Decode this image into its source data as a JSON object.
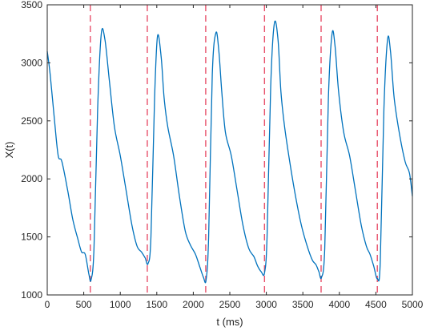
{
  "chart_data": {
    "type": "line",
    "xlabel": "t (ms)",
    "ylabel": "X(t)",
    "xlim": [
      0,
      5000
    ],
    "ylim": [
      1000,
      3500
    ],
    "xticks": [
      0,
      500,
      1000,
      1500,
      2000,
      2500,
      3000,
      3500,
      4000,
      4500,
      5000
    ],
    "yticks": [
      1000,
      1500,
      2000,
      2500,
      3000,
      3500
    ],
    "grid": false,
    "series": [
      {
        "color": "#0072BD",
        "x": [
          0,
          40,
          100,
          150,
          200,
          280,
          350,
          420,
          470,
          520,
          570,
          600,
          640,
          690,
          740,
          790,
          850,
          920,
          1000,
          1080,
          1160,
          1230,
          1290,
          1340,
          1380,
          1420,
          1470,
          1510,
          1560,
          1600,
          1650,
          1730,
          1810,
          1890,
          1960,
          2030,
          2090,
          2140,
          2175,
          2210,
          2260,
          2310,
          2350,
          2390,
          2440,
          2520,
          2600,
          2680,
          2760,
          2830,
          2880,
          2930,
          2975,
          3010,
          3060,
          3110,
          3160,
          3200,
          3250,
          3320,
          3400,
          3480,
          3560,
          3630,
          3680,
          3720,
          3755,
          3800,
          3850,
          3900,
          3940,
          3990,
          4060,
          4140,
          4220,
          4300,
          4370,
          4420,
          4470,
          4520,
          4560,
          4610,
          4660,
          4700,
          4750,
          4820,
          4900,
          4960,
          5000
        ],
        "y": [
          3100,
          2900,
          2500,
          2200,
          2150,
          1900,
          1650,
          1480,
          1370,
          1350,
          1180,
          1130,
          1400,
          2600,
          3250,
          3200,
          2850,
          2450,
          2200,
          1900,
          1600,
          1420,
          1370,
          1320,
          1270,
          1500,
          2700,
          3230,
          3050,
          2700,
          2450,
          2200,
          1850,
          1550,
          1430,
          1350,
          1240,
          1150,
          1130,
          1500,
          2900,
          3260,
          3100,
          2750,
          2400,
          2200,
          1900,
          1600,
          1400,
          1330,
          1250,
          1200,
          1190,
          1500,
          2800,
          3340,
          3200,
          2750,
          2450,
          2150,
          1850,
          1600,
          1420,
          1300,
          1260,
          1200,
          1150,
          1400,
          2700,
          3250,
          3150,
          2750,
          2400,
          2200,
          1900,
          1600,
          1420,
          1350,
          1250,
          1140,
          1280,
          2600,
          3200,
          3100,
          2700,
          2400,
          2150,
          2050,
          1850
        ]
      }
    ],
    "vlines": {
      "color": "#E8506A",
      "style": "dashed",
      "x": [
        590,
        1370,
        2170,
        2975,
        3750,
        4520
      ]
    }
  }
}
